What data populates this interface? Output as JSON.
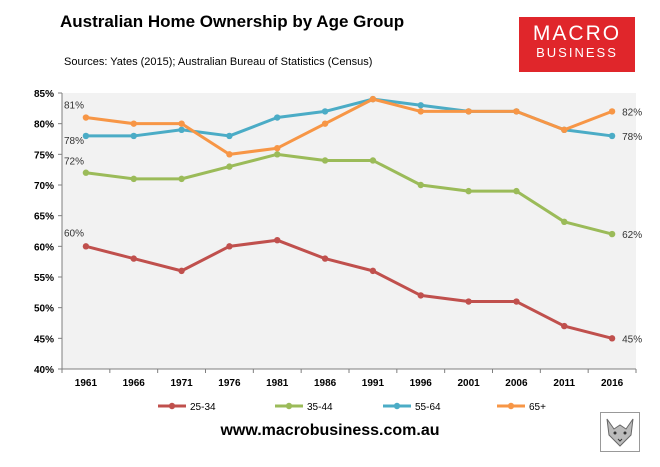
{
  "header": {
    "title": "Australian Home Ownership by Age Group",
    "subtitle": "Sources: Yates (2015); Australian Bureau of Statistics (Census)"
  },
  "logo": {
    "line1": "MACRO",
    "line2": "BUSINESS",
    "color": "#e0262b"
  },
  "footer": {
    "website": "www.macrobusiness.com.au"
  },
  "chart_data": {
    "type": "line",
    "title": "Australian Home Ownership by Age Group",
    "xlabel": "",
    "ylabel": "",
    "categories": [
      "1961",
      "1966",
      "1971",
      "1976",
      "1981",
      "1986",
      "1991",
      "1996",
      "2001",
      "2006",
      "2011",
      "2016"
    ],
    "ylim": [
      40,
      85
    ],
    "yticks": [
      40,
      45,
      50,
      55,
      60,
      65,
      70,
      75,
      80,
      85
    ],
    "ytick_format": "%",
    "grid": false,
    "plot_background": "#f2f2f2",
    "legend_position": "bottom",
    "series": [
      {
        "name": "25-34",
        "color": "#c0504d",
        "values": [
          60,
          58,
          56,
          60,
          61,
          58,
          56,
          52,
          51,
          51,
          47,
          45
        ]
      },
      {
        "name": "35-44",
        "color": "#9bbb59",
        "values": [
          72,
          71,
          71,
          73,
          75,
          74,
          74,
          70,
          69,
          69,
          64,
          62
        ]
      },
      {
        "name": "55-64",
        "color": "#4bacc6",
        "values": [
          78,
          78,
          79,
          78,
          81,
          82,
          84,
          83,
          82,
          82,
          79,
          78
        ]
      },
      {
        "name": "65+",
        "color": "#f79646",
        "values": [
          81,
          80,
          80,
          75,
          76,
          80,
          84,
          82,
          82,
          82,
          79,
          82
        ]
      }
    ],
    "annotations": [
      {
        "series": "65+",
        "position": "start",
        "text": "81%"
      },
      {
        "series": "55-64",
        "position": "start",
        "text": "78%"
      },
      {
        "series": "35-44",
        "position": "start",
        "text": "72%"
      },
      {
        "series": "25-34",
        "position": "start",
        "text": "60%"
      },
      {
        "series": "65+",
        "position": "end",
        "text": "82%"
      },
      {
        "series": "55-64",
        "position": "end",
        "text": "78%"
      },
      {
        "series": "35-44",
        "position": "end",
        "text": "62%"
      },
      {
        "series": "25-34",
        "position": "end",
        "text": "45%"
      }
    ]
  }
}
